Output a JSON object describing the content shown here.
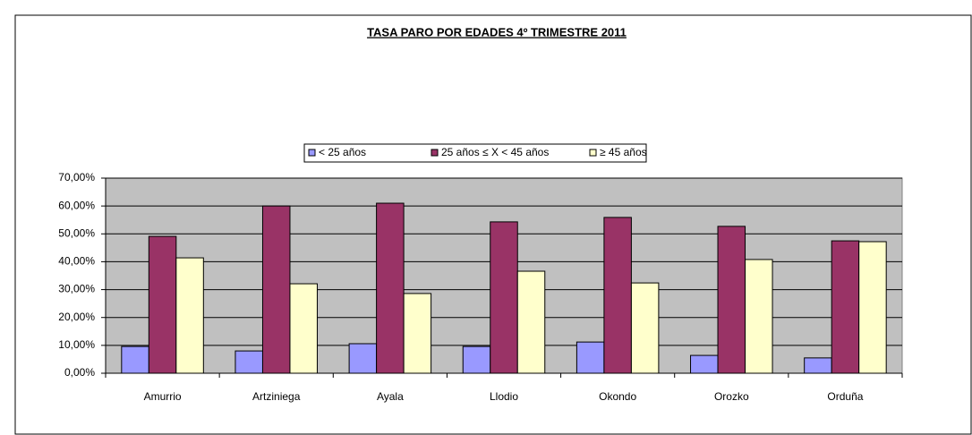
{
  "chart_data": {
    "type": "bar",
    "title": "TASA PARO POR EDADES 4º TRIMESTRE 2011",
    "categories": [
      "Amurrio",
      "Artziniega",
      "Ayala",
      "Llodio",
      "Okondo",
      "Orozko",
      "Orduña"
    ],
    "series": [
      {
        "name": "< 25 años",
        "color": "#9999ff",
        "values": [
          9.6,
          8.0,
          10.6,
          9.6,
          11.2,
          6.4,
          5.5
        ]
      },
      {
        "name": "25 años ≤ X < 45 años",
        "color": "#993366",
        "values": [
          49.1,
          60.0,
          61.0,
          54.3,
          55.9,
          52.7,
          47.5
        ]
      },
      {
        "name": "≥ 45 años",
        "color": "#ffffcc",
        "values": [
          41.4,
          32.1,
          28.6,
          36.6,
          32.4,
          40.8,
          47.2
        ]
      }
    ],
    "ylim": [
      0,
      70
    ],
    "yticks": [
      {
        "value": 0,
        "label": "0,00%"
      },
      {
        "value": 10,
        "label": "10,00%"
      },
      {
        "value": 20,
        "label": "20,00%"
      },
      {
        "value": 30,
        "label": "30,00%"
      },
      {
        "value": 40,
        "label": "40,00%"
      },
      {
        "value": 50,
        "label": "50,00%"
      },
      {
        "value": 60,
        "label": "60,00%"
      },
      {
        "value": 70,
        "label": "70,00%"
      }
    ],
    "grid": true,
    "legend": "top"
  }
}
